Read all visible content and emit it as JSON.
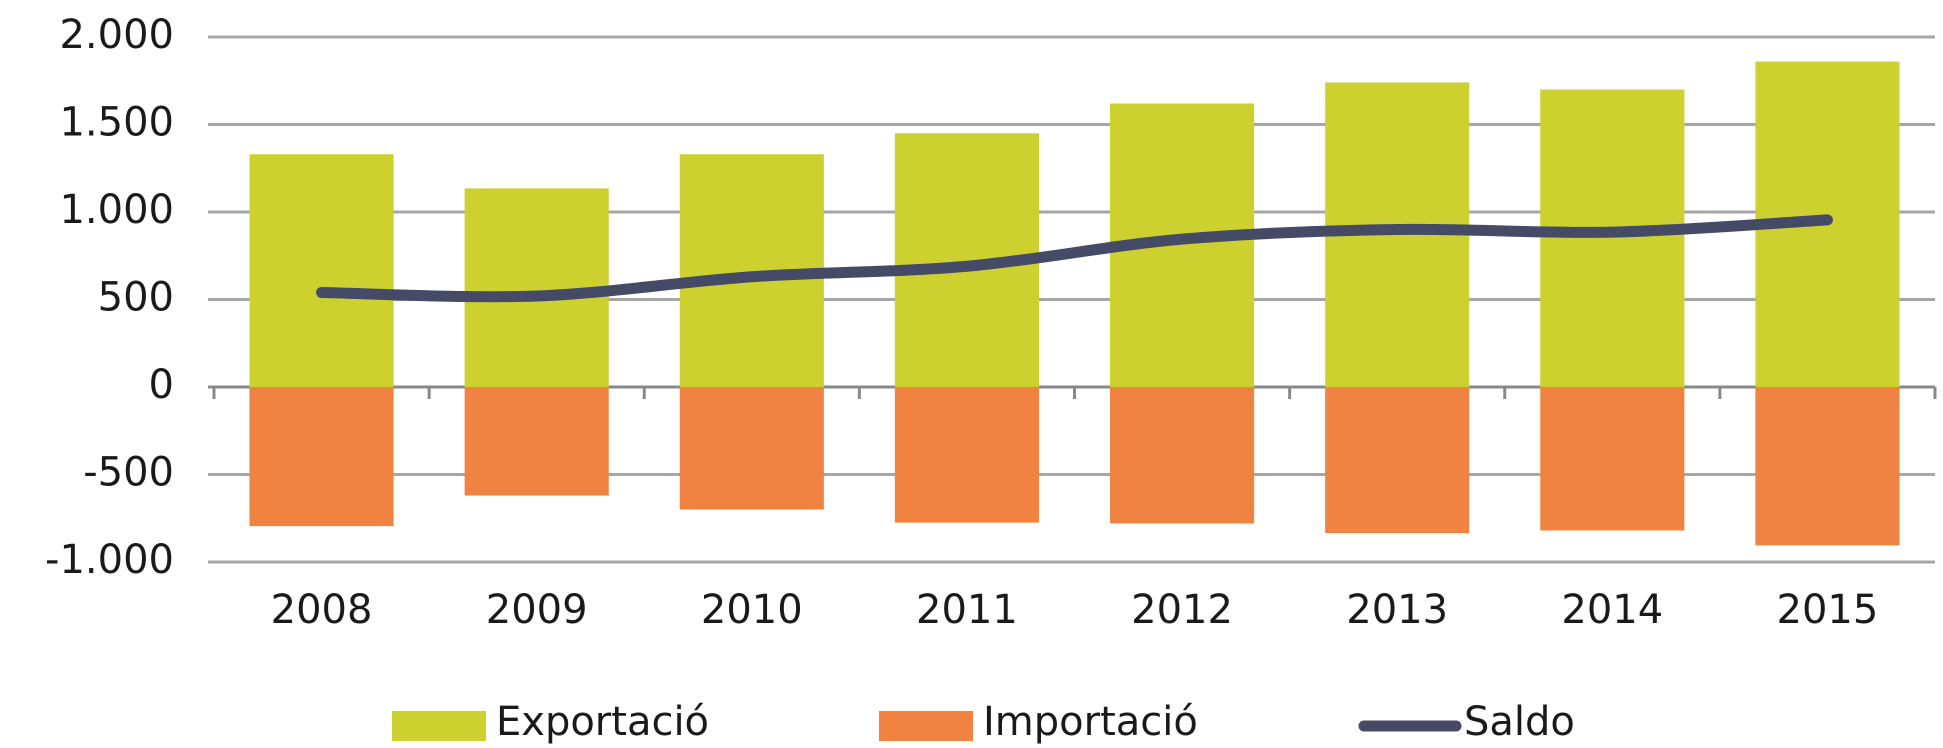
{
  "chart_data": {
    "type": "bar",
    "categories": [
      "2008",
      "2009",
      "2010",
      "2011",
      "2012",
      "2013",
      "2014",
      "2015"
    ],
    "series": [
      {
        "name": "Exportació",
        "color": "#cdd12f",
        "type": "bar",
        "values": [
          1330,
          1135,
          1330,
          1450,
          1620,
          1740,
          1700,
          1860
        ]
      },
      {
        "name": "Importació",
        "color": "#f08342",
        "type": "bar",
        "values": [
          -795,
          -620,
          -700,
          -775,
          -780,
          -835,
          -820,
          -905
        ]
      },
      {
        "name": "Saldo",
        "color": "#454a66",
        "type": "line",
        "values": [
          540,
          520,
          630,
          690,
          845,
          900,
          885,
          955
        ]
      }
    ],
    "ylim": [
      -1000,
      2000
    ],
    "yticks": [
      {
        "value": -1000,
        "label": "-1.000"
      },
      -500,
      0,
      500,
      {
        "value": 1000,
        "label": "1.000"
      },
      {
        "value": 1500,
        "label": "1.500"
      },
      {
        "value": 2000,
        "label": "2.000"
      }
    ],
    "grid": true
  }
}
